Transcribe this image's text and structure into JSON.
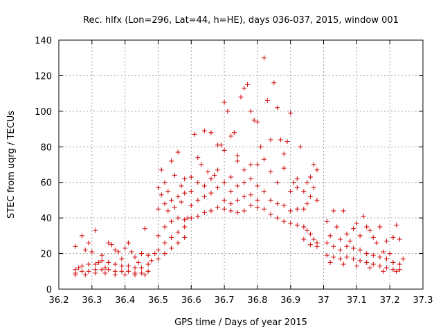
{
  "chart_data": {
    "type": "scatter",
    "title": "Rec. hlfx (Lon=296, Lat=44, h=HE), days 036-037, 2015, window 001",
    "xlabel": "GPS time / Days of year 2015",
    "ylabel": "STEC from uqrg / TECUs",
    "xlim": [
      36.2,
      37.3
    ],
    "ylim": [
      0,
      140
    ],
    "xticks": [
      "36.2",
      "36.3",
      "36.4",
      "36.5",
      "36.6",
      "36.7",
      "36.8",
      "36.9",
      "37",
      "37.1",
      "37.2",
      "37.3"
    ],
    "yticks": [
      "0",
      "20",
      "40",
      "60",
      "80",
      "100",
      "120",
      "140"
    ],
    "grid": true,
    "marker": "+",
    "color": "#d00000",
    "series": [
      {
        "values": [
          [
            36.25,
            24
          ],
          [
            36.26,
            12
          ],
          [
            36.27,
            30
          ],
          [
            36.28,
            22
          ],
          [
            36.29,
            26
          ],
          [
            36.3,
            21
          ],
          [
            36.31,
            33
          ],
          [
            36.32,
            15
          ],
          [
            36.33,
            19
          ],
          [
            36.34,
            12
          ],
          [
            36.35,
            26
          ],
          [
            36.36,
            25
          ],
          [
            36.37,
            22
          ],
          [
            36.38,
            21
          ],
          [
            36.39,
            17
          ],
          [
            36.4,
            23
          ],
          [
            36.41,
            26
          ],
          [
            36.42,
            21
          ],
          [
            36.43,
            18
          ],
          [
            36.44,
            15
          ],
          [
            36.45,
            20
          ],
          [
            36.46,
            34
          ],
          [
            36.47,
            19
          ],
          [
            36.48,
            16
          ],
          [
            36.25,
            11
          ],
          [
            36.27,
            13
          ],
          [
            36.29,
            14
          ],
          [
            36.31,
            14
          ],
          [
            36.33,
            16
          ],
          [
            36.35,
            15
          ],
          [
            36.37,
            14
          ],
          [
            36.39,
            13
          ],
          [
            36.41,
            13
          ],
          [
            36.43,
            12
          ],
          [
            36.45,
            12
          ],
          [
            36.47,
            14
          ],
          [
            36.25,
            9
          ],
          [
            36.27,
            10
          ],
          [
            36.29,
            10
          ],
          [
            36.31,
            11
          ],
          [
            36.33,
            11
          ],
          [
            36.35,
            11
          ],
          [
            36.37,
            10
          ],
          [
            36.39,
            10
          ],
          [
            36.41,
            10
          ],
          [
            36.43,
            9
          ],
          [
            36.45,
            9
          ],
          [
            36.47,
            10
          ],
          [
            36.25,
            8
          ],
          [
            36.28,
            8
          ],
          [
            36.31,
            9
          ],
          [
            36.34,
            9
          ],
          [
            36.37,
            8
          ],
          [
            36.4,
            8
          ],
          [
            36.43,
            8
          ],
          [
            36.46,
            8
          ],
          [
            36.49,
            20
          ],
          [
            36.5,
            57
          ],
          [
            36.51,
            67
          ],
          [
            36.52,
            60
          ],
          [
            36.53,
            55
          ],
          [
            36.54,
            72
          ],
          [
            36.55,
            64
          ],
          [
            36.56,
            77
          ],
          [
            36.57,
            58
          ],
          [
            36.58,
            62
          ],
          [
            36.5,
            45
          ],
          [
            36.51,
            53
          ],
          [
            36.52,
            48
          ],
          [
            36.53,
            44
          ],
          [
            36.54,
            50
          ],
          [
            36.55,
            46
          ],
          [
            36.56,
            52
          ],
          [
            36.57,
            49
          ],
          [
            36.58,
            54
          ],
          [
            36.5,
            30
          ],
          [
            36.52,
            35
          ],
          [
            36.54,
            38
          ],
          [
            36.56,
            40
          ],
          [
            36.58,
            39
          ],
          [
            36.5,
            22
          ],
          [
            36.52,
            26
          ],
          [
            36.54,
            29
          ],
          [
            36.56,
            32
          ],
          [
            36.58,
            35
          ],
          [
            36.5,
            17
          ],
          [
            36.52,
            20
          ],
          [
            36.54,
            23
          ],
          [
            36.56,
            26
          ],
          [
            36.58,
            29
          ],
          [
            36.59,
            40
          ],
          [
            36.6,
            63
          ],
          [
            36.61,
            87
          ],
          [
            36.62,
            74
          ],
          [
            36.63,
            70
          ],
          [
            36.64,
            89
          ],
          [
            36.65,
            66
          ],
          [
            36.66,
            88
          ],
          [
            36.67,
            64
          ],
          [
            36.68,
            81
          ],
          [
            36.69,
            81
          ],
          [
            36.6,
            55
          ],
          [
            36.62,
            60
          ],
          [
            36.64,
            58
          ],
          [
            36.66,
            62
          ],
          [
            36.68,
            67
          ],
          [
            36.6,
            47
          ],
          [
            36.62,
            50
          ],
          [
            36.64,
            52
          ],
          [
            36.66,
            54
          ],
          [
            36.68,
            57
          ],
          [
            36.6,
            40
          ],
          [
            36.62,
            41
          ],
          [
            36.64,
            43
          ],
          [
            36.66,
            44
          ],
          [
            36.68,
            46
          ],
          [
            36.7,
            105
          ],
          [
            36.71,
            100
          ],
          [
            36.72,
            86
          ],
          [
            36.73,
            88
          ],
          [
            36.74,
            75
          ],
          [
            36.75,
            108
          ],
          [
            36.76,
            113
          ],
          [
            36.77,
            115
          ],
          [
            36.78,
            100
          ],
          [
            36.79,
            95
          ],
          [
            36.8,
            94
          ],
          [
            36.81,
            80
          ],
          [
            36.7,
            78
          ],
          [
            36.72,
            63
          ],
          [
            36.74,
            72
          ],
          [
            36.76,
            67
          ],
          [
            36.78,
            70
          ],
          [
            36.8,
            70
          ],
          [
            36.7,
            60
          ],
          [
            36.72,
            55
          ],
          [
            36.74,
            58
          ],
          [
            36.76,
            60
          ],
          [
            36.78,
            62
          ],
          [
            36.8,
            58
          ],
          [
            36.7,
            50
          ],
          [
            36.72,
            48
          ],
          [
            36.74,
            50
          ],
          [
            36.76,
            52
          ],
          [
            36.78,
            53
          ],
          [
            36.8,
            50
          ],
          [
            36.7,
            45
          ],
          [
            36.72,
            44
          ],
          [
            36.74,
            43
          ],
          [
            36.76,
            44
          ],
          [
            36.78,
            47
          ],
          [
            36.8,
            46
          ],
          [
            36.82,
            130
          ],
          [
            36.83,
            106
          ],
          [
            36.84,
            84
          ],
          [
            36.85,
            116
          ],
          [
            36.86,
            102
          ],
          [
            36.87,
            84
          ],
          [
            36.88,
            76
          ],
          [
            36.89,
            83
          ],
          [
            36.9,
            99
          ],
          [
            36.91,
            60
          ],
          [
            36.92,
            62
          ],
          [
            36.93,
            80
          ],
          [
            36.82,
            73
          ],
          [
            36.84,
            66
          ],
          [
            36.86,
            60
          ],
          [
            36.88,
            68
          ],
          [
            36.9,
            55
          ],
          [
            36.92,
            57
          ],
          [
            36.82,
            55
          ],
          [
            36.84,
            50
          ],
          [
            36.86,
            48
          ],
          [
            36.88,
            47
          ],
          [
            36.9,
            44
          ],
          [
            36.92,
            45
          ],
          [
            36.82,
            45
          ],
          [
            36.84,
            42
          ],
          [
            36.86,
            40
          ],
          [
            36.88,
            38
          ],
          [
            36.9,
            37
          ],
          [
            36.92,
            36
          ],
          [
            36.94,
            55
          ],
          [
            36.95,
            60
          ],
          [
            36.96,
            63
          ],
          [
            36.97,
            70
          ],
          [
            36.98,
            67
          ],
          [
            36.94,
            45
          ],
          [
            36.95,
            48
          ],
          [
            36.96,
            52
          ],
          [
            36.97,
            57
          ],
          [
            36.98,
            50
          ],
          [
            36.94,
            35
          ],
          [
            36.95,
            33
          ],
          [
            36.96,
            31
          ],
          [
            36.97,
            28
          ],
          [
            36.98,
            26
          ],
          [
            36.94,
            28
          ],
          [
            36.96,
            25
          ],
          [
            36.98,
            24
          ],
          [
            37.01,
            38
          ],
          [
            37.02,
            30
          ],
          [
            37.03,
            44
          ],
          [
            37.04,
            35
          ],
          [
            37.05,
            28
          ],
          [
            37.06,
            44
          ],
          [
            37.07,
            31
          ],
          [
            37.08,
            27
          ],
          [
            37.09,
            34
          ],
          [
            37.1,
            37
          ],
          [
            37.11,
            30
          ],
          [
            37.12,
            41
          ],
          [
            37.13,
            35
          ],
          [
            37.14,
            33
          ],
          [
            37.15,
            29
          ],
          [
            37.16,
            26
          ],
          [
            37.17,
            35
          ],
          [
            37.18,
            21
          ],
          [
            37.19,
            27
          ],
          [
            37.2,
            20
          ],
          [
            37.21,
            29
          ],
          [
            37.22,
            36
          ],
          [
            37.23,
            28
          ],
          [
            37.24,
            17
          ],
          [
            37.01,
            26
          ],
          [
            37.03,
            24
          ],
          [
            37.05,
            22
          ],
          [
            37.07,
            24
          ],
          [
            37.09,
            23
          ],
          [
            37.11,
            22
          ],
          [
            37.13,
            20
          ],
          [
            37.15,
            19
          ],
          [
            37.17,
            18
          ],
          [
            37.19,
            17
          ],
          [
            37.21,
            15
          ],
          [
            37.23,
            14
          ],
          [
            37.01,
            19
          ],
          [
            37.03,
            18
          ],
          [
            37.05,
            17
          ],
          [
            37.07,
            18
          ],
          [
            37.09,
            17
          ],
          [
            37.11,
            16
          ],
          [
            37.13,
            15
          ],
          [
            37.15,
            14
          ],
          [
            37.17,
            13
          ],
          [
            37.19,
            12
          ],
          [
            37.21,
            11
          ],
          [
            37.23,
            11
          ],
          [
            37.02,
            15
          ],
          [
            37.06,
            14
          ],
          [
            37.1,
            13
          ],
          [
            37.14,
            12
          ],
          [
            37.18,
            10
          ],
          [
            37.22,
            10
          ]
        ]
      }
    ]
  }
}
